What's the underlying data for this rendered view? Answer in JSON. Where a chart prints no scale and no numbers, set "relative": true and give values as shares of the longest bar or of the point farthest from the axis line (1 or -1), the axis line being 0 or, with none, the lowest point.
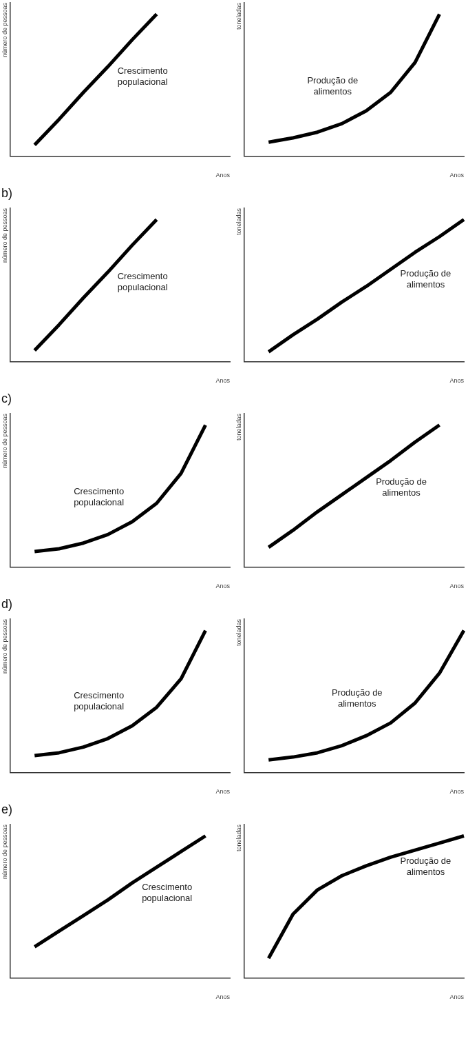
{
  "chart_data": [
    {
      "type": "line",
      "relative": true,
      "xlabel": "Anos",
      "ylabel": "número de pessoas",
      "categories": [
        null,
        null,
        null,
        null,
        null,
        null,
        null,
        null,
        null,
        null
      ],
      "series": [
        {
          "name": "Crescimento populacional",
          "color": "#000000",
          "values": [
            null,
            0.08,
            0.26,
            0.45,
            0.63,
            0.82,
            1,
            null,
            null,
            null
          ]
        }
      ],
      "marker": "none",
      "grid": false,
      "legend": false
    },
    {
      "type": "line",
      "relative": true,
      "xlabel": "Anos",
      "ylabel": "toneladas",
      "categories": [
        null,
        null,
        null,
        null,
        null,
        null,
        null,
        null,
        null,
        null
      ],
      "series": [
        {
          "name": "Produção de alimentos",
          "color": "#000000",
          "values": [
            null,
            0.1,
            0.13,
            0.17,
            0.23,
            0.32,
            0.45,
            0.66,
            1,
            null
          ]
        }
      ],
      "marker": "none",
      "grid": false,
      "legend": false
    },
    {
      "type": "line",
      "relative": true,
      "title": "b)",
      "xlabel": "Anos",
      "ylabel": "número de pessoas",
      "categories": [
        null,
        null,
        null,
        null,
        null,
        null,
        null,
        null,
        null,
        null
      ],
      "series": [
        {
          "name": "Crescimento populacional",
          "color": "#000000",
          "values": [
            null,
            0.08,
            0.26,
            0.45,
            0.63,
            0.82,
            1,
            null,
            null,
            null
          ]
        }
      ],
      "marker": "none",
      "grid": false,
      "legend": false
    },
    {
      "type": "line",
      "relative": true,
      "xlabel": "Anos",
      "ylabel": "toneladas",
      "categories": [
        null,
        null,
        null,
        null,
        null,
        null,
        null,
        null,
        null,
        null
      ],
      "series": [
        {
          "name": "Produção de alimentos",
          "color": "#000000",
          "values": [
            null,
            0.07,
            0.19,
            0.3,
            0.42,
            0.53,
            0.65,
            0.77,
            0.88,
            1
          ]
        }
      ],
      "marker": "none",
      "grid": false,
      "legend": false
    },
    {
      "type": "line",
      "relative": true,
      "title": "c)",
      "xlabel": "Anos",
      "ylabel": "número de pessoas",
      "categories": [
        null,
        null,
        null,
        null,
        null,
        null,
        null,
        null,
        null,
        null
      ],
      "series": [
        {
          "name": "Crescimento populacional",
          "color": "#000000",
          "values": [
            null,
            0.11,
            0.13,
            0.17,
            0.23,
            0.32,
            0.45,
            0.66,
            1,
            null
          ]
        }
      ],
      "marker": "none",
      "grid": false,
      "legend": false
    },
    {
      "type": "line",
      "relative": true,
      "xlabel": "Anos",
      "ylabel": "toneladas",
      "categories": [
        null,
        null,
        null,
        null,
        null,
        null,
        null,
        null,
        null,
        null
      ],
      "series": [
        {
          "name": "Produção de alimentos",
          "color": "#000000",
          "values": [
            null,
            0.14,
            0.26,
            0.39,
            0.51,
            0.63,
            0.75,
            0.88,
            1,
            null
          ]
        }
      ],
      "marker": "none",
      "grid": false,
      "legend": false
    },
    {
      "type": "line",
      "relative": true,
      "title": "d)",
      "xlabel": "Anos",
      "ylabel": "número de pessoas",
      "categories": [
        null,
        null,
        null,
        null,
        null,
        null,
        null,
        null,
        null,
        null
      ],
      "series": [
        {
          "name": "Crescimento populacional",
          "color": "#000000",
          "values": [
            null,
            0.12,
            0.14,
            0.18,
            0.24,
            0.33,
            0.46,
            0.66,
            1,
            null
          ]
        }
      ],
      "marker": "none",
      "grid": false,
      "legend": false
    },
    {
      "type": "line",
      "relative": true,
      "xlabel": "Anos",
      "ylabel": "toneladas",
      "categories": [
        null,
        null,
        null,
        null,
        null,
        null,
        null,
        null,
        null,
        null
      ],
      "series": [
        {
          "name": "Produção de alimentos",
          "color": "#000000",
          "values": [
            null,
            0.09,
            0.11,
            0.14,
            0.19,
            0.26,
            0.35,
            0.49,
            0.7,
            1
          ]
        }
      ],
      "marker": "none",
      "grid": false,
      "legend": false
    },
    {
      "type": "line",
      "relative": true,
      "title": "e)",
      "xlabel": "Anos",
      "ylabel": "número de pessoas",
      "categories": [
        null,
        null,
        null,
        null,
        null,
        null,
        null,
        null,
        null,
        null
      ],
      "series": [
        {
          "name": "Crescimento populacional",
          "color": "#000000",
          "values": [
            null,
            0.22,
            0.33,
            0.44,
            0.55,
            0.67,
            0.78,
            0.89,
            1,
            null
          ]
        }
      ],
      "marker": "none",
      "grid": false,
      "legend": false
    },
    {
      "type": "line",
      "relative": true,
      "xlabel": "Anos",
      "ylabel": "toneladas",
      "categories": [
        null,
        null,
        null,
        null,
        null,
        null,
        null,
        null,
        null,
        null
      ],
      "series": [
        {
          "name": "Produção de alimentos",
          "color": "#000000",
          "values": [
            null,
            0.14,
            0.45,
            0.62,
            0.72,
            0.79,
            0.85,
            0.9,
            0.95,
            1
          ]
        }
      ],
      "marker": "none",
      "grid": false,
      "legend": false
    }
  ]
}
